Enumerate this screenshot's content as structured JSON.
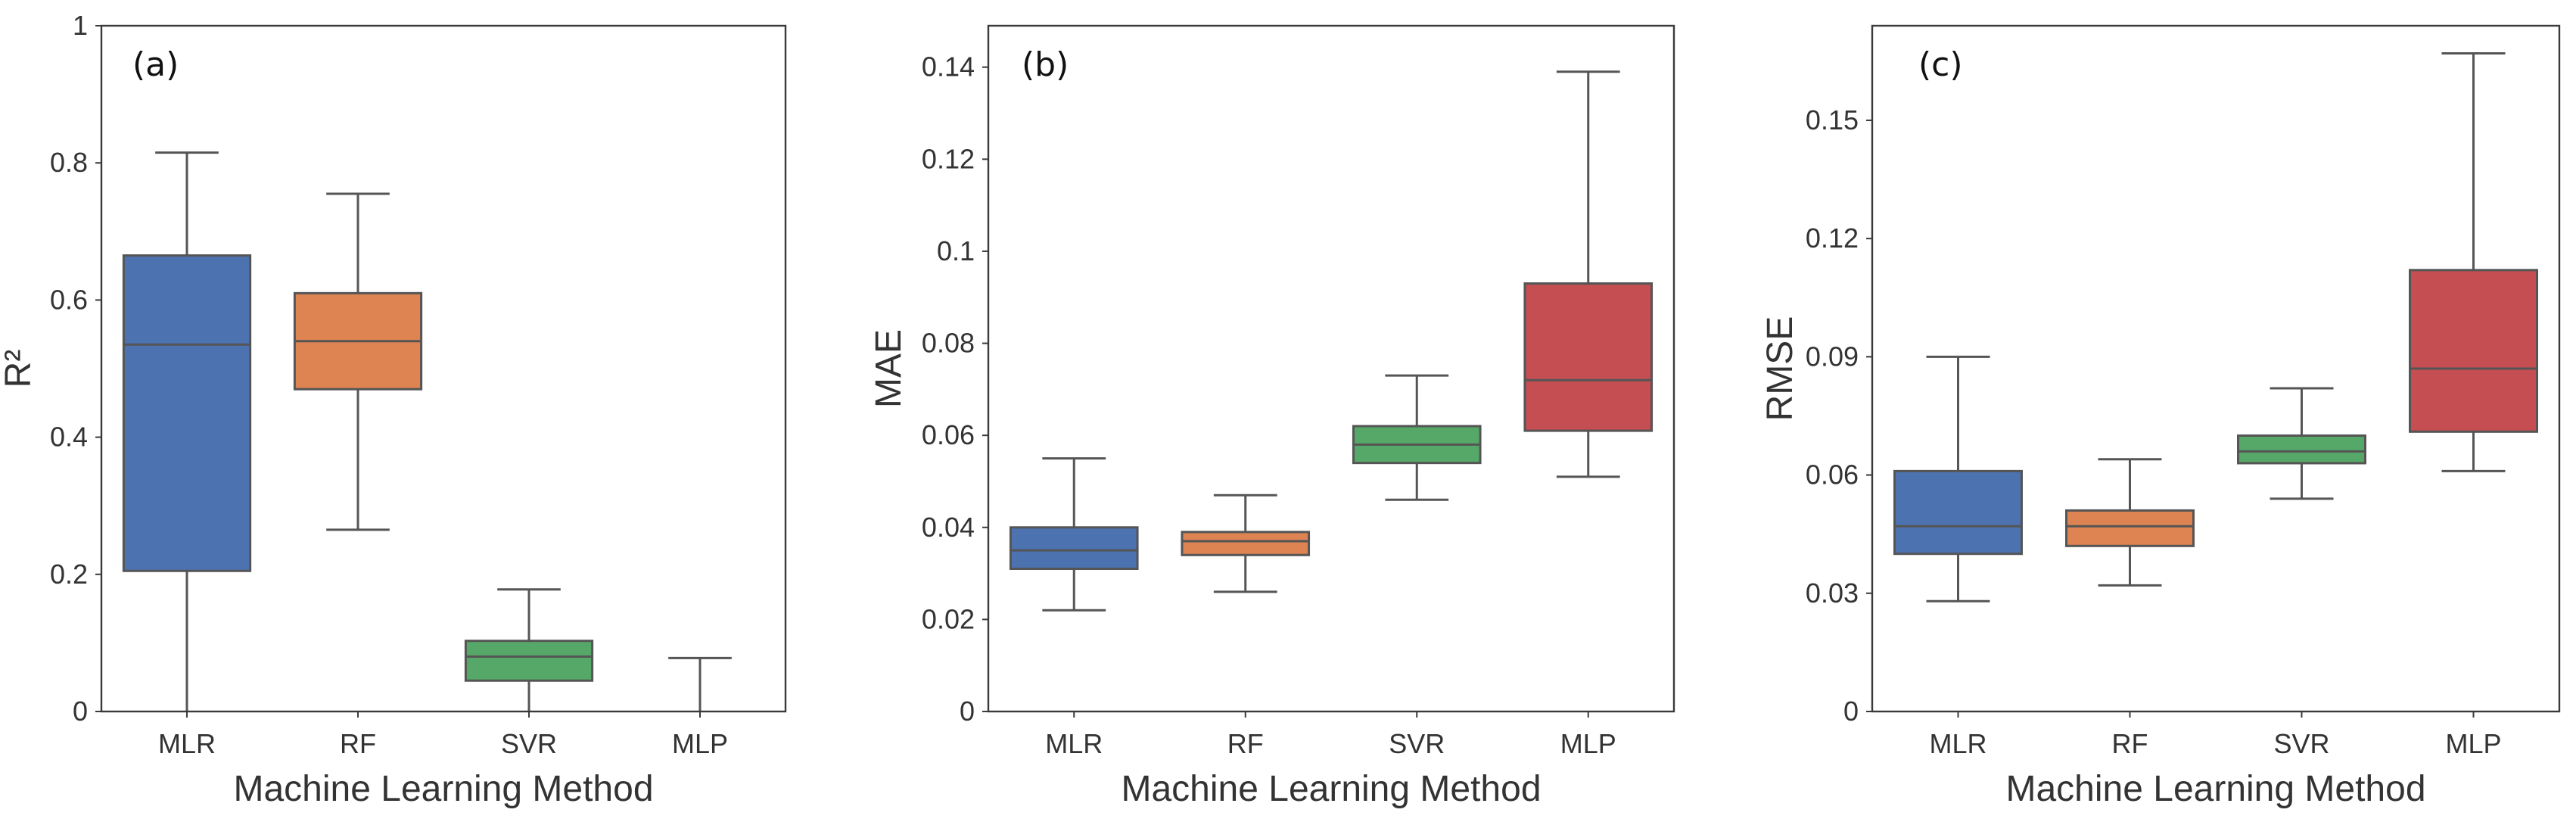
{
  "chart_data": [
    {
      "type": "box",
      "panel_tag": "(a)",
      "xlabel": "Machine Learning Method",
      "ylabel": "R²",
      "ylim": [
        0,
        1
      ],
      "yticks": [
        0,
        0.2,
        0.4,
        0.6,
        0.8,
        1
      ],
      "ytick_labels": [
        "0",
        "0.2",
        "0.4",
        "0.6",
        "0.8",
        "1"
      ],
      "categories": [
        "MLR",
        "RF",
        "SVR",
        "MLP"
      ],
      "boxes": [
        {
          "name": "MLR",
          "whisker_low": 0.0,
          "q1": 0.205,
          "median": 0.535,
          "q3": 0.665,
          "whisker_high": 0.815
        },
        {
          "name": "RF",
          "whisker_low": 0.265,
          "q1": 0.47,
          "median": 0.54,
          "q3": 0.61,
          "whisker_high": 0.755
        },
        {
          "name": "SVR",
          "whisker_low": 0.0,
          "q1": 0.045,
          "median": 0.08,
          "q3": 0.103,
          "whisker_high": 0.178
        },
        {
          "name": "MLP",
          "whisker_low": 0.0,
          "q1": 0.0,
          "median": 0.0,
          "q3": 0.0,
          "whisker_high": 0.078
        }
      ]
    },
    {
      "type": "box",
      "panel_tag": "(b)",
      "xlabel": "Machine Learning Method",
      "ylabel": "MAE",
      "ylim": [
        0,
        0.149
      ],
      "yticks": [
        0,
        0.02,
        0.04,
        0.06,
        0.08,
        0.1,
        0.12,
        0.14
      ],
      "ytick_labels": [
        "0",
        "0.02",
        "0.04",
        "0.06",
        "0.08",
        "0.1",
        "0.12",
        "0.14"
      ],
      "categories": [
        "MLR",
        "RF",
        "SVR",
        "MLP"
      ],
      "boxes": [
        {
          "name": "MLR",
          "whisker_low": 0.022,
          "q1": 0.031,
          "median": 0.035,
          "q3": 0.04,
          "whisker_high": 0.055
        },
        {
          "name": "RF",
          "whisker_low": 0.026,
          "q1": 0.034,
          "median": 0.037,
          "q3": 0.039,
          "whisker_high": 0.047
        },
        {
          "name": "SVR",
          "whisker_low": 0.046,
          "q1": 0.054,
          "median": 0.058,
          "q3": 0.062,
          "whisker_high": 0.073
        },
        {
          "name": "MLP",
          "whisker_low": 0.051,
          "q1": 0.061,
          "median": 0.072,
          "q3": 0.093,
          "whisker_high": 0.139
        }
      ]
    },
    {
      "type": "box",
      "panel_tag": "(c)",
      "xlabel": "Machine Learning Method",
      "ylabel": "RMSE",
      "ylim": [
        0,
        0.174
      ],
      "yticks": [
        0,
        0.03,
        0.06,
        0.09,
        0.12,
        0.15
      ],
      "ytick_labels": [
        "0",
        "0.03",
        "0.06",
        "0.09",
        "0.12",
        "0.15"
      ],
      "categories": [
        "MLR",
        "RF",
        "SVR",
        "MLP"
      ],
      "boxes": [
        {
          "name": "MLR",
          "whisker_low": 0.028,
          "q1": 0.04,
          "median": 0.047,
          "q3": 0.061,
          "whisker_high": 0.09
        },
        {
          "name": "RF",
          "whisker_low": 0.032,
          "q1": 0.042,
          "median": 0.047,
          "q3": 0.051,
          "whisker_high": 0.064
        },
        {
          "name": "SVR",
          "whisker_low": 0.054,
          "q1": 0.063,
          "median": 0.066,
          "q3": 0.07,
          "whisker_high": 0.082
        },
        {
          "name": "MLP",
          "whisker_low": 0.061,
          "q1": 0.071,
          "median": 0.087,
          "q3": 0.112,
          "whisker_high": 0.167
        }
      ]
    }
  ],
  "colors": {
    "MLR": "#4c72b0",
    "RF": "#dd8452",
    "SVR": "#55a868",
    "MLP": "#c44e52",
    "frame": "#3a3a3a",
    "lines": "#555555"
  }
}
